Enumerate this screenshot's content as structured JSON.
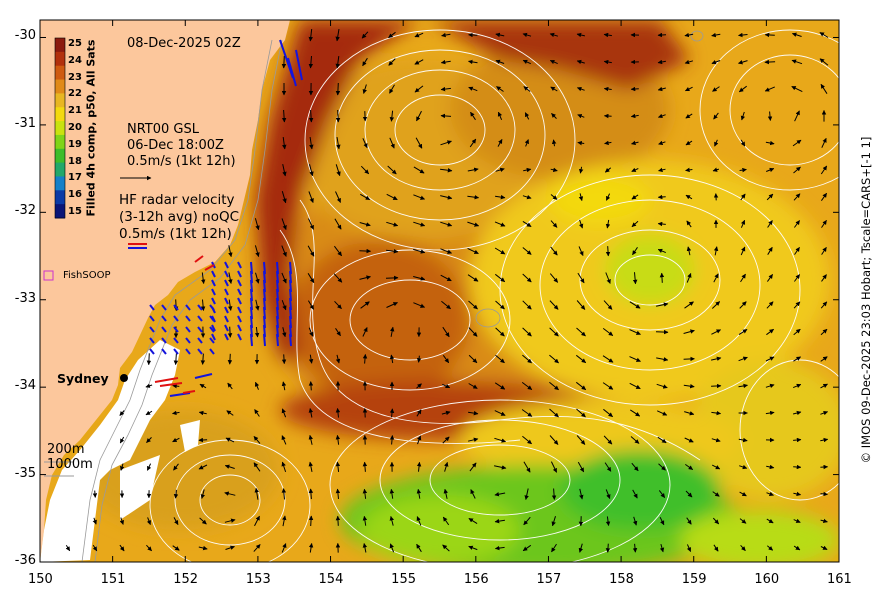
{
  "map": {
    "timestamp": "08-Dec-2025 02Z",
    "x_ticks": [
      "150",
      "151",
      "152",
      "153",
      "154",
      "155",
      "156",
      "157",
      "158",
      "159",
      "160",
      "161"
    ],
    "y_ticks": [
      "-30",
      "-31",
      "-32",
      "-33",
      "-34",
      "-35",
      "-36"
    ],
    "lon_range": [
      150,
      161
    ],
    "lat_range": [
      -36,
      -29.8
    ],
    "colorbar": {
      "title": "Filled 4h comp, p50, All Sats",
      "ticks": [
        "25",
        "24",
        "23",
        "22",
        "21",
        "20",
        "19",
        "18",
        "17",
        "16",
        "15"
      ],
      "colors": [
        "#8b1a0e",
        "#b2300c",
        "#cf5a10",
        "#e08a18",
        "#e8b622",
        "#f3d90f",
        "#c9e20e",
        "#7fd418",
        "#3dbd2a",
        "#22a86a",
        "#1480c8",
        "#0b3aa6",
        "#0a1577"
      ]
    },
    "gsl_legend": {
      "line1": "NRT00 GSL",
      "line2": "06-Dec 18:00Z",
      "line3": "0.5m/s (1kt 12h)"
    },
    "hf_legend": {
      "line1": "HF radar velocity",
      "line2": "(3-12h avg) noQC",
      "line3": "0.5m/s (1kt 12h)"
    },
    "fishsoop_label": "FishSOOP",
    "city_label": "Sydney",
    "depth_labels": [
      "200m",
      "1000m"
    ],
    "credit": "© IMOS 09-Dec-2025 23:03 Hobart; Tscale=CARS+[-1 1]",
    "colors": {
      "land": "#fcc79c",
      "no_data": "#ffffff",
      "contour": "#ffffff",
      "arrow": "#000000",
      "hf_radar_1": "#1414dc",
      "hf_radar_2": "#e01010",
      "fishsoop_marker": "#cc33cc"
    }
  }
}
